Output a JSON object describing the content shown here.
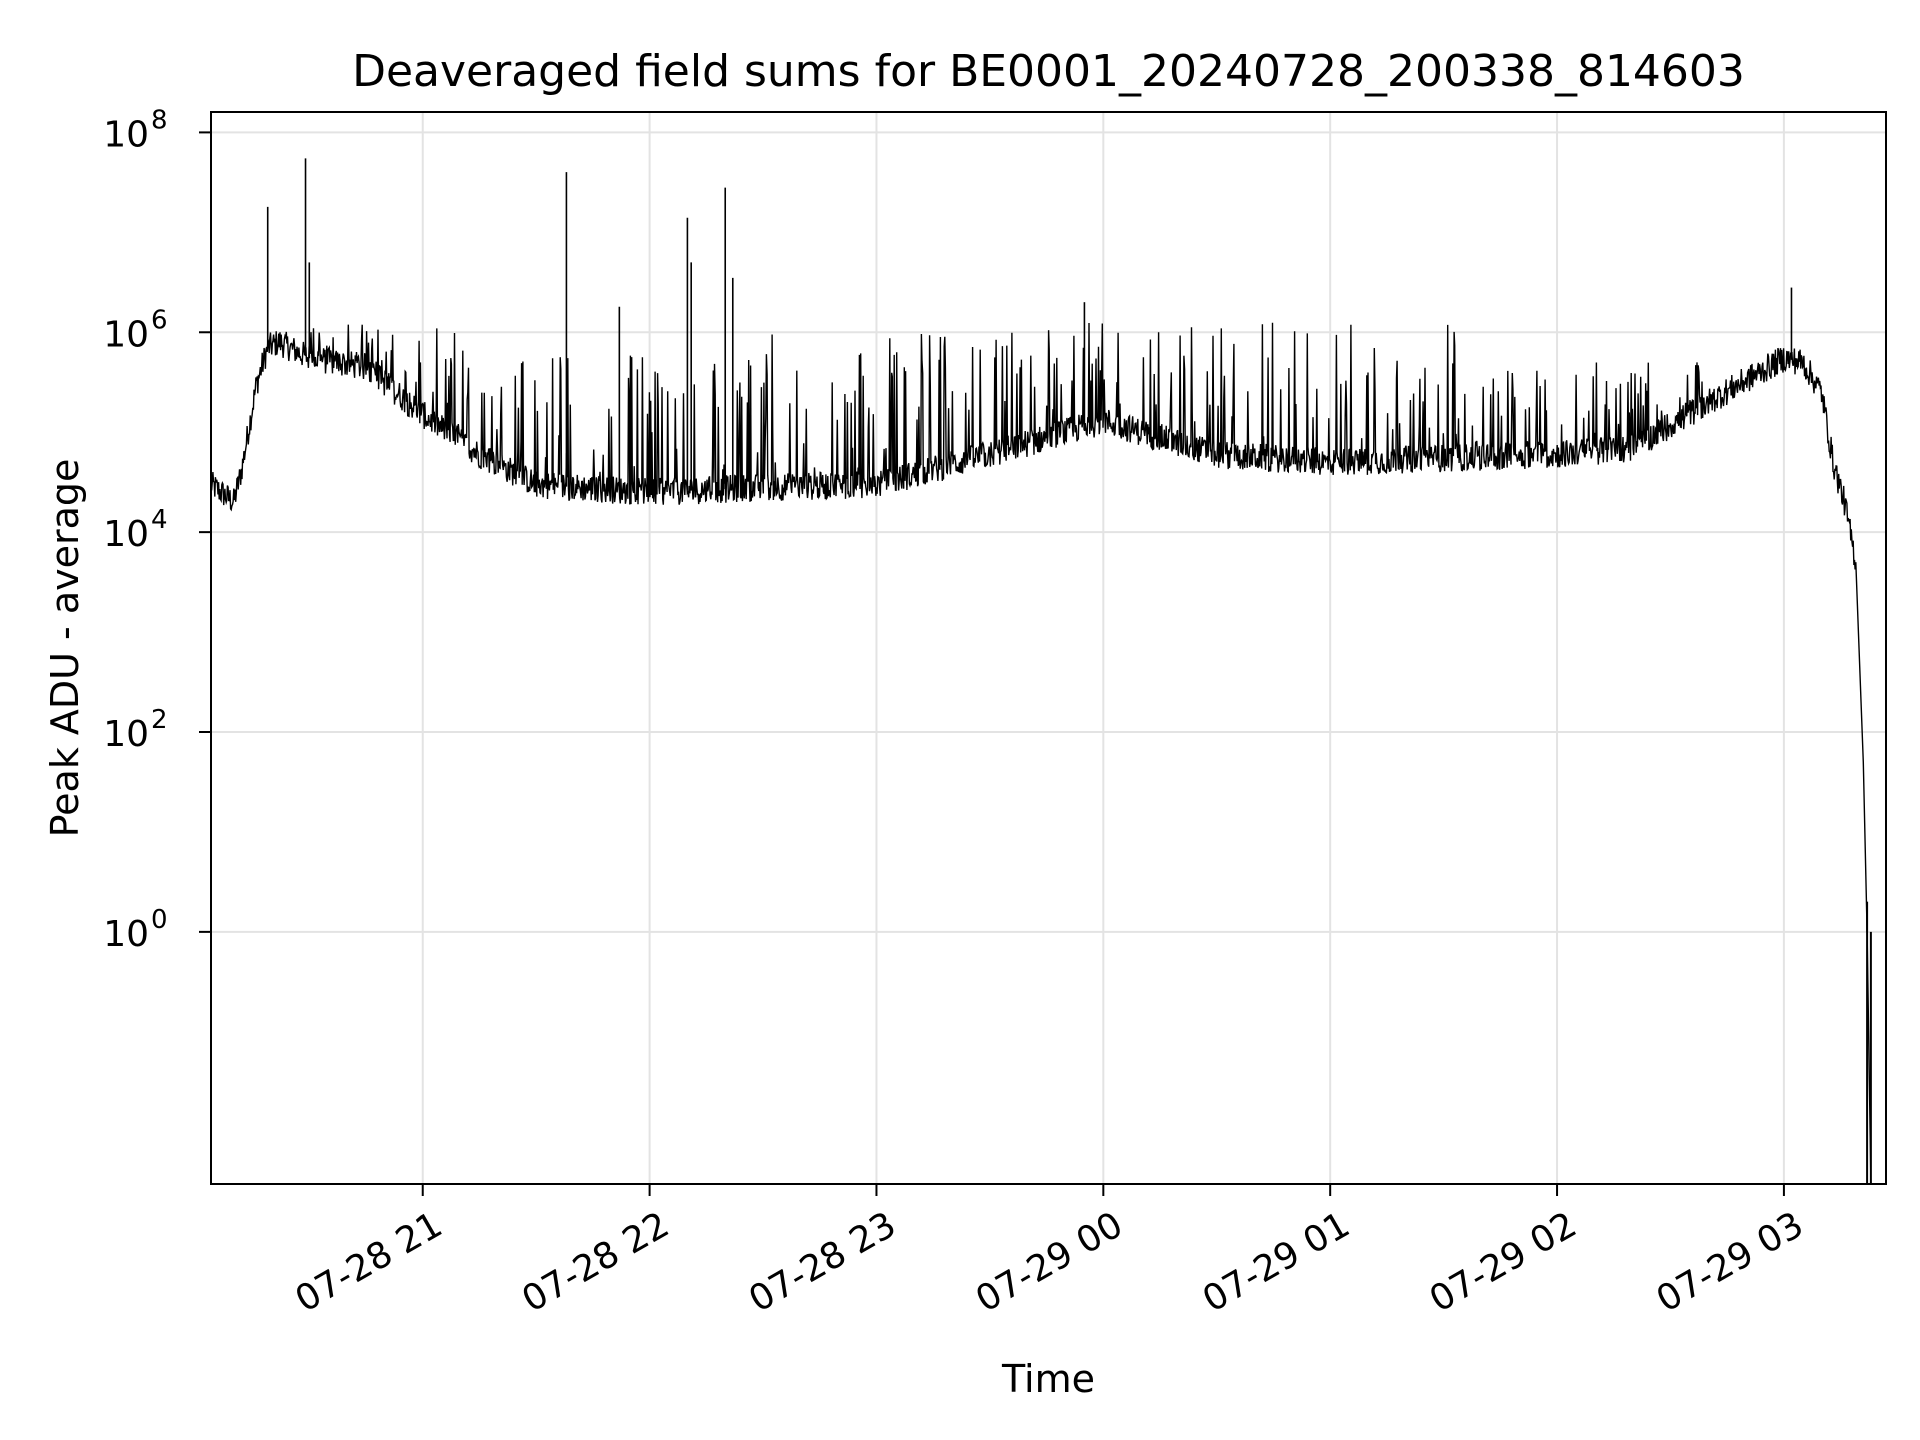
{
  "chart_data": {
    "type": "line",
    "title": "Deaveraged field sums for BE0001_20240728_200338_814603",
    "xlabel": "Time",
    "ylabel": "Peak ADU - average",
    "yscale": "log",
    "xlim": [
      "2024-07-28 20:04",
      "2024-07-29 03:27"
    ],
    "ylim": [
      0.003,
      160000000
    ],
    "grid": true,
    "line_color": "#000000",
    "x_ticks": [
      {
        "value": "2024-07-28 21:00",
        "label": "07-28 21"
      },
      {
        "value": "2024-07-28 22:00",
        "label": "07-28 22"
      },
      {
        "value": "2024-07-28 23:00",
        "label": "07-28 23"
      },
      {
        "value": "2024-07-29 00:00",
        "label": "07-29 00"
      },
      {
        "value": "2024-07-29 01:00",
        "label": "07-29 01"
      },
      {
        "value": "2024-07-29 02:00",
        "label": "07-29 02"
      },
      {
        "value": "2024-07-29 03:00",
        "label": "07-29 03"
      }
    ],
    "y_ticks": [
      {
        "value": 1,
        "base": "10",
        "exp": "0"
      },
      {
        "value": 100,
        "base": "10",
        "exp": "2"
      },
      {
        "value": 10000,
        "base": "10",
        "exp": "4"
      },
      {
        "value": 1000000,
        "base": "10",
        "exp": "6"
      },
      {
        "value": 100000000,
        "base": "10",
        "exp": "8"
      }
    ],
    "baseline": [
      [
        "2024-07-28 20:04",
        30000
      ],
      [
        "2024-07-28 20:10",
        20000
      ],
      [
        "2024-07-28 20:12",
        40000
      ],
      [
        "2024-07-28 20:16",
        300000
      ],
      [
        "2024-07-28 20:19",
        700000
      ],
      [
        "2024-07-28 20:22",
        800000
      ],
      [
        "2024-07-28 20:30",
        550000
      ],
      [
        "2024-07-28 20:45",
        450000
      ],
      [
        "2024-07-28 21:00",
        150000
      ],
      [
        "2024-07-28 21:15",
        60000
      ],
      [
        "2024-07-28 21:30",
        30000
      ],
      [
        "2024-07-28 22:00",
        25000
      ],
      [
        "2024-07-28 22:30",
        28000
      ],
      [
        "2024-07-28 23:00",
        30000
      ],
      [
        "2024-07-28 23:30",
        60000
      ],
      [
        "2024-07-29 00:00",
        130000
      ],
      [
        "2024-07-29 00:30",
        60000
      ],
      [
        "2024-07-29 01:00",
        50000
      ],
      [
        "2024-07-29 01:30",
        55000
      ],
      [
        "2024-07-29 02:00",
        60000
      ],
      [
        "2024-07-29 02:20",
        70000
      ],
      [
        "2024-07-29 02:40",
        200000
      ],
      [
        "2024-07-29 03:00",
        550000
      ],
      [
        "2024-07-29 03:05",
        500000
      ],
      [
        "2024-07-29 03:10",
        250000
      ],
      [
        "2024-07-29 03:13",
        50000
      ],
      [
        "2024-07-29 03:16",
        20000
      ],
      [
        "2024-07-29 03:19",
        5000
      ],
      [
        "2024-07-29 03:21",
        50
      ],
      [
        "2024-07-29 03:22",
        1
      ],
      [
        "2024-07-29 03:23",
        0.003
      ]
    ],
    "spikes": [
      [
        "2024-07-28 20:19",
        18000000
      ],
      [
        "2024-07-28 20:29",
        55000000
      ],
      [
        "2024-07-28 20:30",
        5000000
      ],
      [
        "2024-07-28 21:38",
        40000000
      ],
      [
        "2024-07-28 21:52",
        1800000
      ],
      [
        "2024-07-28 22:10",
        14000000
      ],
      [
        "2024-07-28 22:11",
        5000000
      ],
      [
        "2024-07-28 22:20",
        28000000
      ],
      [
        "2024-07-28 22:22",
        3500000
      ],
      [
        "2024-07-28 23:55",
        2000000
      ],
      [
        "2024-07-29 03:02",
        2800000
      ],
      [
        "2024-07-29 03:22",
        2
      ]
    ],
    "dense_band": [
      {
        "from": "2024-07-28 20:30",
        "to": "2024-07-28 21:10",
        "top": 1200000
      },
      {
        "from": "2024-07-28 21:10",
        "to": "2024-07-28 22:30",
        "top": 700000
      },
      {
        "from": "2024-07-28 22:30",
        "to": "2024-07-28 23:30",
        "top": 1000000
      },
      {
        "from": "2024-07-28 23:30",
        "to": "2024-07-29 00:20",
        "top": 1300000
      },
      {
        "from": "2024-07-29 00:20",
        "to": "2024-07-29 01:40",
        "top": 1300000
      },
      {
        "from": "2024-07-29 01:40",
        "to": "2024-07-29 02:40",
        "top": 500000
      }
    ]
  }
}
